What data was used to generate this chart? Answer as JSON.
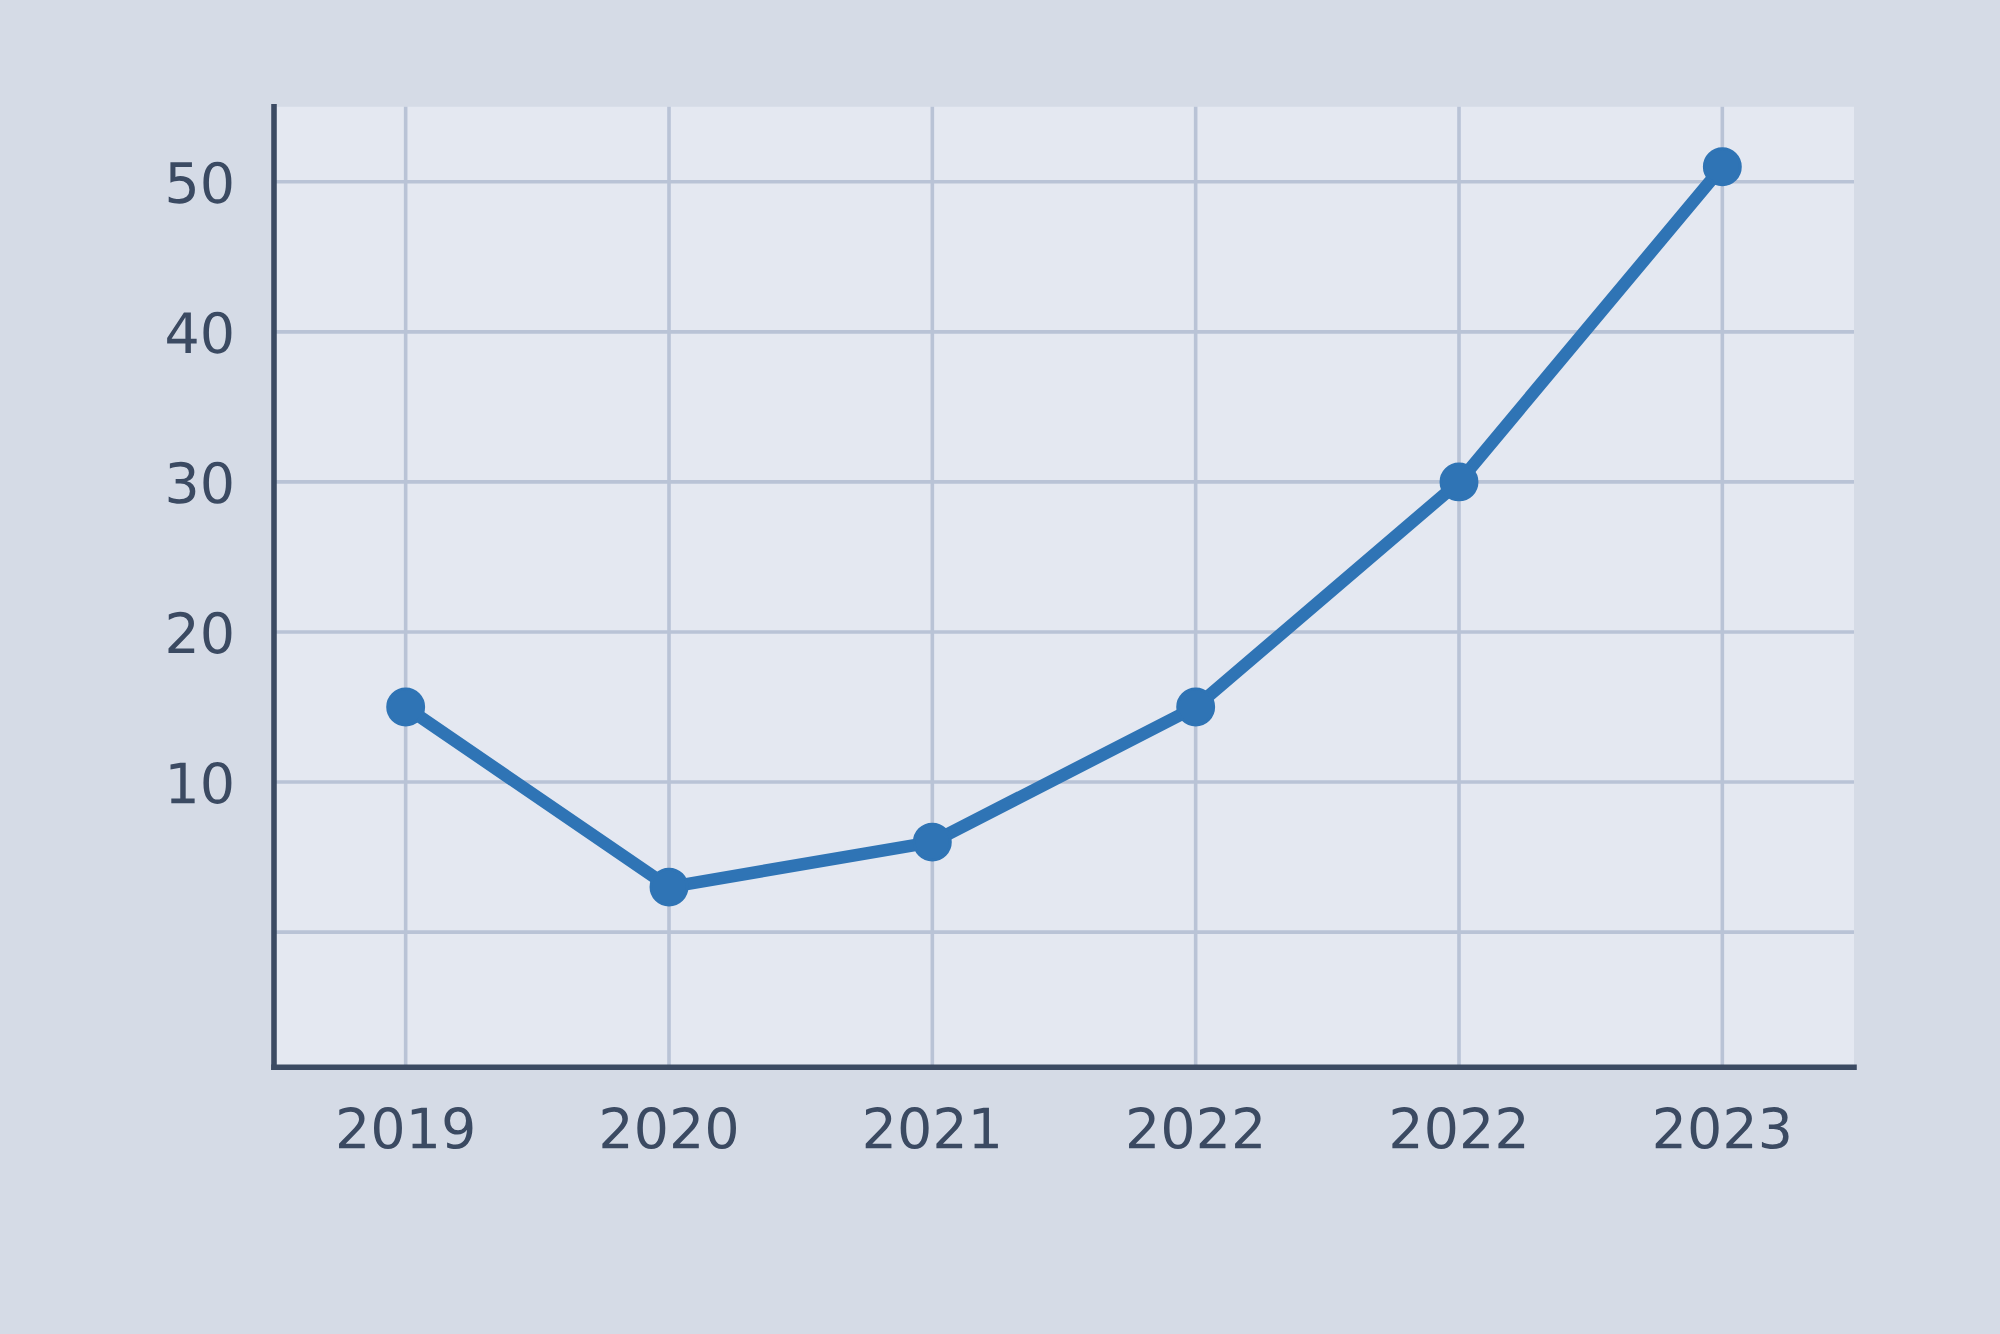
{
  "chart_data": {
    "type": "line",
    "categories": [
      "2019",
      "2020",
      "2021",
      "2022",
      "2022",
      "2023"
    ],
    "series": [
      {
        "color": "#2f74b5",
        "values": [
          15,
          3,
          6,
          15,
          30,
          51
        ]
      }
    ],
    "ylim": [
      -9,
      55
    ],
    "yticks": [
      {
        "value": 0,
        "label": null
      },
      10,
      20,
      30,
      40,
      50
    ],
    "grid": true,
    "marker": "circle",
    "line_style": "solid"
  }
}
